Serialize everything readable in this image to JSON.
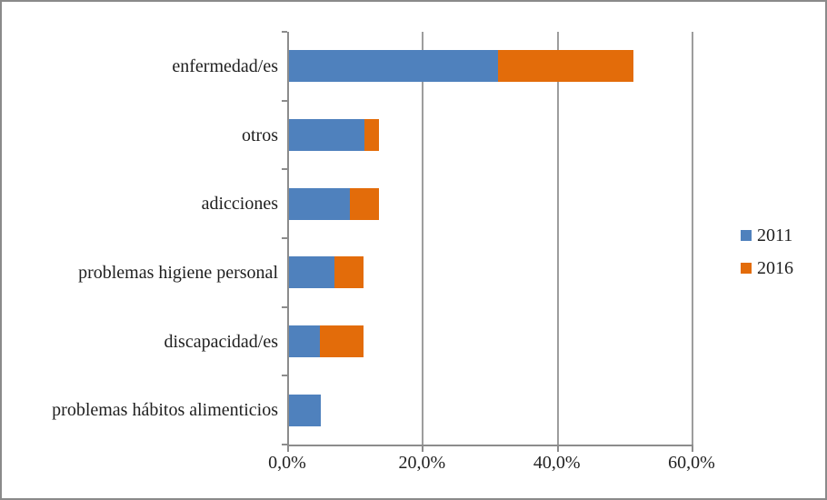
{
  "chart_data": {
    "type": "bar",
    "orientation": "horizontal",
    "stacked": true,
    "title": "",
    "xlabel": "",
    "ylabel": "",
    "grid": true,
    "legend_position": "right",
    "categories": [
      "enfermedad/es",
      "otros",
      "adicciones",
      "problemas higiene personal",
      "discapacidad/es",
      "problemas hábitos alimenticios"
    ],
    "series": [
      {
        "name": "2011",
        "color": "#4F81BD",
        "values": [
          31.0,
          11.2,
          9.1,
          6.7,
          4.6,
          4.7
        ]
      },
      {
        "name": "2016",
        "color": "#E36C0A",
        "values": [
          20.1,
          2.2,
          4.3,
          4.3,
          6.4,
          0.0
        ]
      }
    ],
    "x_axis": {
      "min": 0,
      "max": 60,
      "tick_step": 20,
      "tick_labels": [
        "0,0%",
        "20,0%",
        "40,0%",
        "60,0%"
      ]
    }
  },
  "colors": {
    "axis": "#8c8c8c",
    "gridline": "#9d9d9d",
    "frame_border": "#8a8a8a",
    "background": "#ffffff",
    "text": "#1f1f1f"
  }
}
